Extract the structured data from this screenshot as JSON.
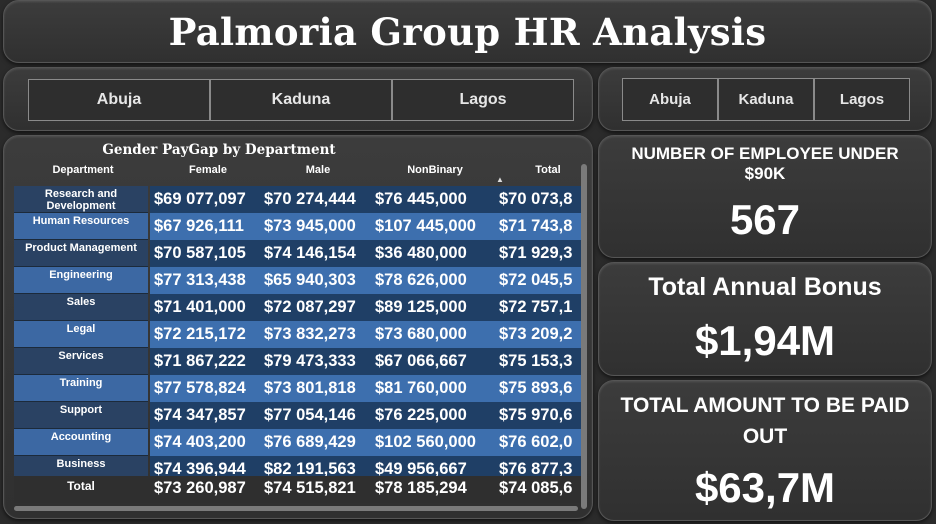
{
  "header": {
    "title": "Palmoria Group HR Analysis"
  },
  "slicer_left": {
    "buttons": [
      "Abuja",
      "Kaduna",
      "Lagos"
    ]
  },
  "slicer_right": {
    "buttons": [
      "Abuja",
      "Kaduna",
      "Lagos"
    ]
  },
  "table": {
    "title": "Gender PayGap by Department",
    "columns": [
      "Department",
      "Female",
      "Male",
      "NonBinary",
      "Total"
    ],
    "rows": [
      {
        "department": "Research and Development",
        "female": "$69 077,097",
        "male": "$70 274,444",
        "nonbinary": "$76 445,000",
        "total": "$70 073,8"
      },
      {
        "department": "Human Resources",
        "female": "$67 926,111",
        "male": "$73 945,000",
        "nonbinary": "$107 445,000",
        "total": "$71 743,8"
      },
      {
        "department": "Product Management",
        "female": "$70 587,105",
        "male": "$74 146,154",
        "nonbinary": "$36 480,000",
        "total": "$71 929,3"
      },
      {
        "department": "Engineering",
        "female": "$77 313,438",
        "male": "$65 940,303",
        "nonbinary": "$78 626,000",
        "total": "$72 045,5"
      },
      {
        "department": "Sales",
        "female": "$71 401,000",
        "male": "$72 087,297",
        "nonbinary": "$89 125,000",
        "total": "$72 757,1"
      },
      {
        "department": "Legal",
        "female": "$72 215,172",
        "male": "$73 832,273",
        "nonbinary": "$73 680,000",
        "total": "$73 209,2"
      },
      {
        "department": "Services",
        "female": "$71 867,222",
        "male": "$79 473,333",
        "nonbinary": "$67 066,667",
        "total": "$75 153,3"
      },
      {
        "department": "Training",
        "female": "$77 578,824",
        "male": "$73 801,818",
        "nonbinary": "$81 760,000",
        "total": "$75 893,6"
      },
      {
        "department": "Support",
        "female": "$74 347,857",
        "male": "$77 054,146",
        "nonbinary": "$76 225,000",
        "total": "$75 970,6"
      },
      {
        "department": "Accounting",
        "female": "$74 403,200",
        "male": "$76 689,429",
        "nonbinary": "$102 560,000",
        "total": "$76 602,0"
      },
      {
        "department": "Business",
        "female": "$74 396,944",
        "male": "$82 191,563",
        "nonbinary": "$49 956,667",
        "total": "$76 877,3"
      }
    ],
    "total_row": {
      "label": "Total",
      "female": "$73 260,987",
      "male": "$74 515,821",
      "nonbinary": "$78 185,294",
      "total": "$74 085,6"
    }
  },
  "kpis": {
    "employees_under_90k": {
      "label": "NUMBER OF EMPLOYEE UNDER $90K",
      "value": "567"
    },
    "total_annual_bonus": {
      "label": "Total Annual Bonus",
      "value": "$1,94M"
    },
    "total_paid_out": {
      "label": "TOTAL AMOUNT TO BE PAID OUT",
      "value": "$63,7M"
    }
  },
  "colors": {
    "band_dark": "#1f3f66",
    "band_light": "#3d6fae",
    "background": "#2b2b2b"
  }
}
